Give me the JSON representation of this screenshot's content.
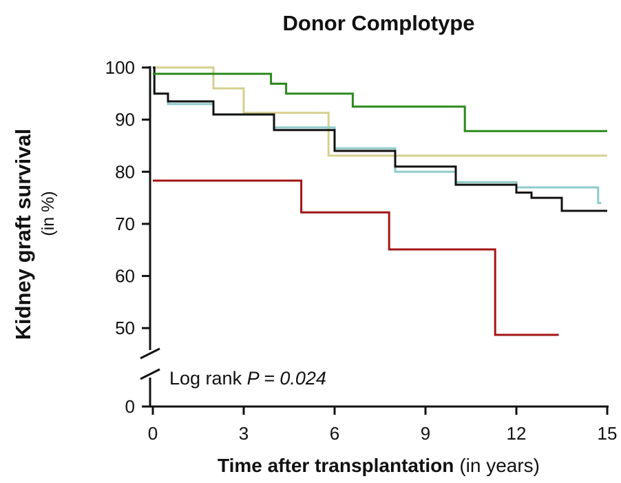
{
  "chart_data": {
    "type": "line",
    "step": "post",
    "title": "Donor Complotype",
    "y_label": "Kidney graft survival",
    "y_label_unit": "(in %)",
    "x_label": "Time after transplantation",
    "x_label_unit": "(in years)",
    "annotation": {
      "text": "Log rank ",
      "italic_p": "P",
      "italic_value": " = 0.024"
    },
    "xlim": [
      0,
      15
    ],
    "xticks": [
      0,
      3,
      6,
      9,
      12,
      15
    ],
    "ylim": [
      0,
      100
    ],
    "y_break": [
      0,
      45
    ],
    "yticks": [
      0,
      50,
      60,
      70,
      80,
      90,
      100
    ],
    "series": [
      {
        "color": "#d6cf8f",
        "x": [
          0,
          2,
          3,
          5.8,
          15
        ],
        "values": [
          100,
          96,
          91.3,
          83.1,
          83.1
        ]
      },
      {
        "color": "#8fcaca",
        "x": [
          0,
          0.05,
          0.5,
          2,
          4,
          6,
          8,
          10,
          12,
          14.7,
          14.8
        ],
        "values": [
          100,
          95,
          93,
          91,
          88.5,
          84.5,
          80,
          78,
          77,
          74,
          74
        ]
      },
      {
        "color": "#111111",
        "x": [
          0,
          0.05,
          0.5,
          2,
          4,
          6,
          8,
          10,
          12,
          12.5,
          13.5,
          15
        ],
        "values": [
          100,
          95,
          93.5,
          91,
          88,
          84,
          81,
          77.5,
          76,
          75,
          72.5,
          72.5
        ]
      },
      {
        "color": "#2a8a1a",
        "x": [
          0,
          3.9,
          4.4,
          6.6,
          10.3,
          15
        ],
        "values": [
          98.8,
          96.9,
          95,
          92.5,
          87.8,
          87.8
        ]
      },
      {
        "color": "#a31515",
        "x": [
          0,
          4.9,
          7.8,
          11.3,
          13.4
        ],
        "values": [
          78.3,
          72.2,
          65.1,
          48.7,
          48.7
        ]
      }
    ]
  }
}
